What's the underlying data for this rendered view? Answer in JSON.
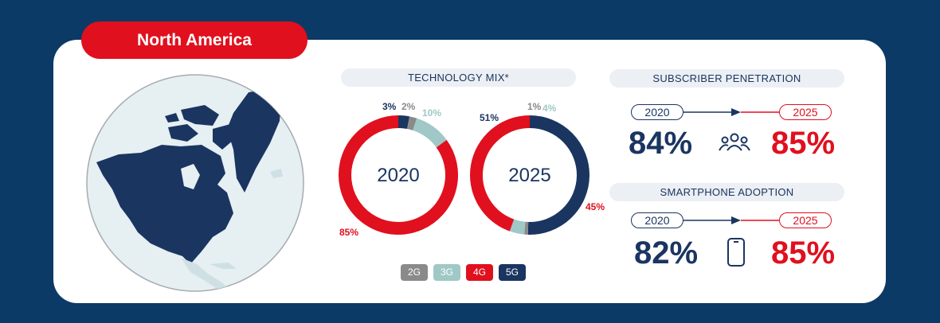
{
  "region": "North America",
  "technology_mix": {
    "title": "TECHNOLOGY MIX*",
    "legend": [
      {
        "label": "2G",
        "color": "#8a8a8a"
      },
      {
        "label": "3G",
        "color": "#9fc8c6"
      },
      {
        "label": "4G",
        "color": "#e0101e"
      },
      {
        "label": "5G",
        "color": "#1b3561"
      }
    ]
  },
  "chart_data": [
    {
      "type": "pie",
      "title": "2020",
      "categories": [
        "5G",
        "2G",
        "3G",
        "4G"
      ],
      "values": [
        3,
        2,
        10,
        85
      ],
      "labels": [
        "3%",
        "2%",
        "10%",
        "85%"
      ]
    },
    {
      "type": "pie",
      "title": "2025",
      "categories": [
        "5G",
        "2G",
        "3G",
        "4G"
      ],
      "values": [
        51,
        1,
        4,
        45
      ],
      "labels": [
        "51%",
        "1%",
        "4%",
        "45%"
      ]
    }
  ],
  "subscriber_penetration": {
    "title": "SUBSCRIBER PENETRATION",
    "from_year": "2020",
    "to_year": "2025",
    "from_value": "84%",
    "to_value": "85%",
    "icon": "people-icon"
  },
  "smartphone_adoption": {
    "title": "SMARTPHONE ADOPTION",
    "from_year": "2020",
    "to_year": "2025",
    "from_value": "82%",
    "to_value": "85%",
    "icon": "smartphone-icon"
  },
  "colors": {
    "navy": "#1b3561",
    "red": "#e0101e",
    "background": "#0c3a66"
  }
}
